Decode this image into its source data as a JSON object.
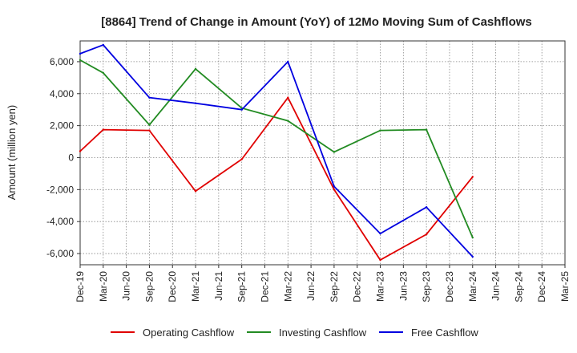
{
  "chart_data": {
    "type": "line",
    "title": "[8864]  Trend of Change in Amount (YoY) of 12Mo Moving Sum of Cashflows",
    "xlabel": "",
    "ylabel": "Amount (million yen)",
    "ylim": [
      -6700,
      7300
    ],
    "yticks": [
      -6000,
      -4000,
      -2000,
      0,
      2000,
      4000,
      6000
    ],
    "ytick_labels": [
      "-6,000",
      "-4,000",
      "-2,000",
      "0",
      "2,000",
      "4,000",
      "6,000"
    ],
    "categories": [
      "Dec-19",
      "Mar-20",
      "Jun-20",
      "Sep-20",
      "Dec-20",
      "Mar-21",
      "Jun-21",
      "Sep-21",
      "Dec-21",
      "Mar-22",
      "Jun-22",
      "Sep-22",
      "Dec-22",
      "Mar-23",
      "Jun-23",
      "Sep-23",
      "Dec-23",
      "Mar-24",
      "Jun-24",
      "Sep-24",
      "Dec-24",
      "Mar-25"
    ],
    "series": [
      {
        "name": "Operating Cashflow",
        "color": "#e00000",
        "values": [
          400,
          1750,
          null,
          1700,
          null,
          -2100,
          null,
          -100,
          null,
          3750,
          null,
          -2000,
          null,
          -6400,
          null,
          -4800,
          null,
          -1200,
          null,
          null,
          null,
          null
        ]
      },
      {
        "name": "Investing Cashflow",
        "color": "#228b22",
        "values": [
          6100,
          5300,
          null,
          2050,
          null,
          5550,
          null,
          3100,
          null,
          2300,
          null,
          350,
          null,
          1700,
          null,
          1750,
          null,
          -5000,
          null,
          null,
          null,
          null
        ]
      },
      {
        "name": "Free Cashflow",
        "color": "#0000e0",
        "values": [
          6500,
          7050,
          null,
          3750,
          null,
          3400,
          null,
          3000,
          null,
          6000,
          null,
          -1800,
          null,
          -4750,
          null,
          -3100,
          null,
          -6200,
          null,
          null,
          null,
          null
        ]
      }
    ],
    "grid": true,
    "legend": "bottom"
  }
}
